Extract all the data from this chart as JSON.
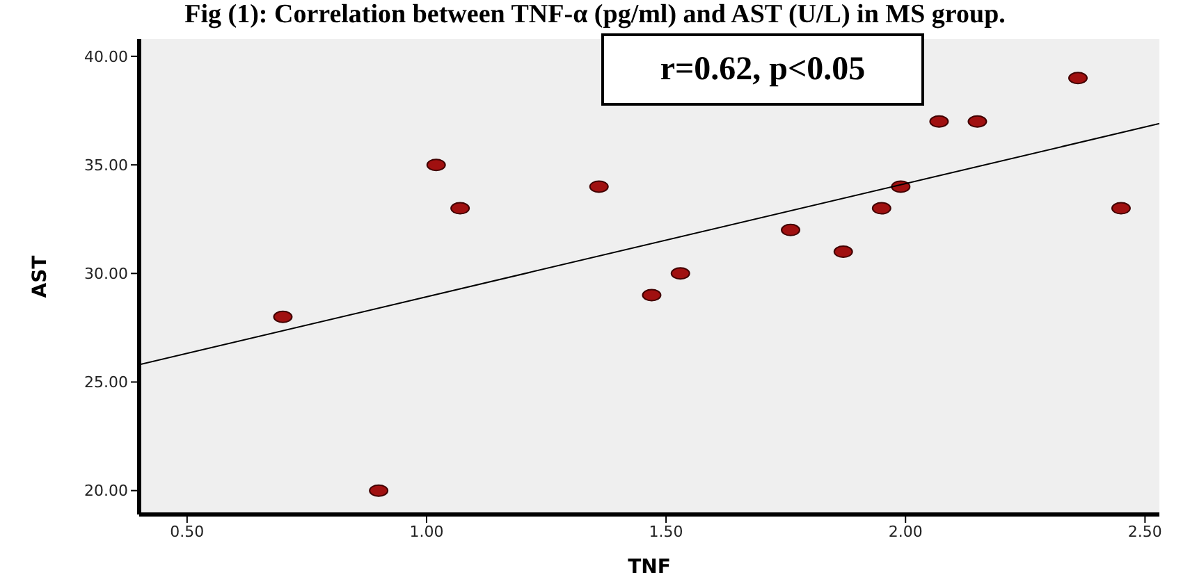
{
  "chart_data": {
    "type": "scatter",
    "title": "Fig (1): Correlation between TNF-α (pg/ml) and AST (U/L) in MS group.",
    "xlabel": "TNF",
    "ylabel": "AST",
    "annotations": [
      "r=0.62, p<0.05"
    ],
    "xlim": [
      0.4,
      2.53
    ],
    "xticks": [
      {
        "value": 0.5,
        "label": "0.50"
      },
      {
        "value": 1,
        "label": "1.00"
      },
      {
        "value": 1.5,
        "label": "1.50"
      },
      {
        "value": 2,
        "label": "2.00"
      },
      {
        "value": 2.5,
        "label": "2.50"
      }
    ],
    "ylim": [
      18.9,
      40.8
    ],
    "yticks": [
      {
        "value": 20,
        "label": "20.00"
      },
      {
        "value": 25,
        "label": "25.00"
      },
      {
        "value": 30,
        "label": "30.00"
      },
      {
        "value": 35,
        "label": "35.00"
      },
      {
        "value": 40,
        "label": "40.00"
      }
    ],
    "grid": false,
    "legend": false,
    "marker": "circle",
    "series": [
      {
        "color": "#a01010",
        "x": [
          0.7,
          0.9,
          1.02,
          1.07,
          1.36,
          1.47,
          1.53,
          1.76,
          1.87,
          1.95,
          1.99,
          2.07,
          2.15,
          2.36,
          2.45
        ],
        "values": [
          28,
          20,
          35,
          33,
          34,
          29,
          30,
          32,
          31,
          33,
          34,
          37,
          37,
          39,
          33
        ]
      },
      {
        "type": "line",
        "color": "#000000",
        "marker": "none",
        "x": [
          0.4,
          2.53
        ],
        "values": [
          25.8,
          36.9
        ]
      }
    ]
  }
}
